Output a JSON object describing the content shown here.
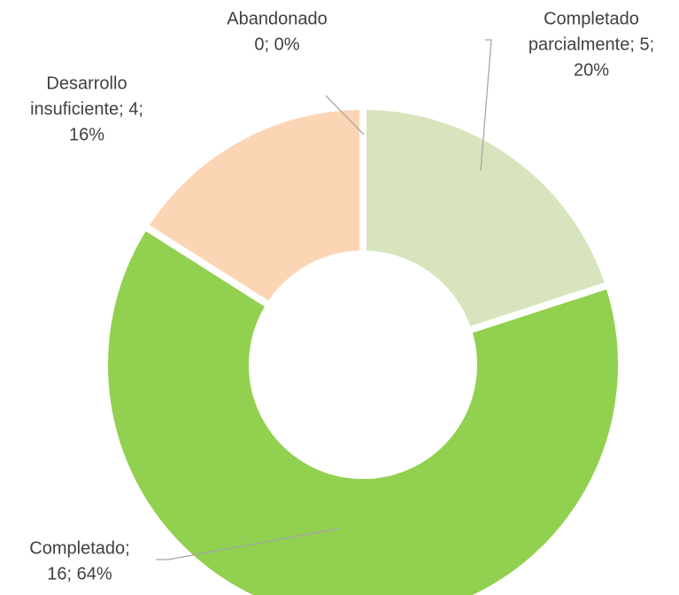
{
  "chart_data": {
    "type": "donut",
    "categories": [
      "Completado parcialmente",
      "Completado",
      "Desarrollo insuficiente",
      "Abandonado"
    ],
    "values": [
      5,
      16,
      4,
      0
    ],
    "value_labels": [
      [
        "Completado",
        "parcialmente; 5;",
        "20%"
      ],
      [
        "Completado;",
        "16; 64%"
      ],
      [
        "Desarrollo",
        "insuficiente; 4;",
        "16%"
      ],
      [
        "Abandonado",
        "0; 0%"
      ]
    ],
    "colors": [
      "#d7e4bd",
      "#92d050",
      "#fcd5b5",
      "#f2dcdb"
    ]
  }
}
